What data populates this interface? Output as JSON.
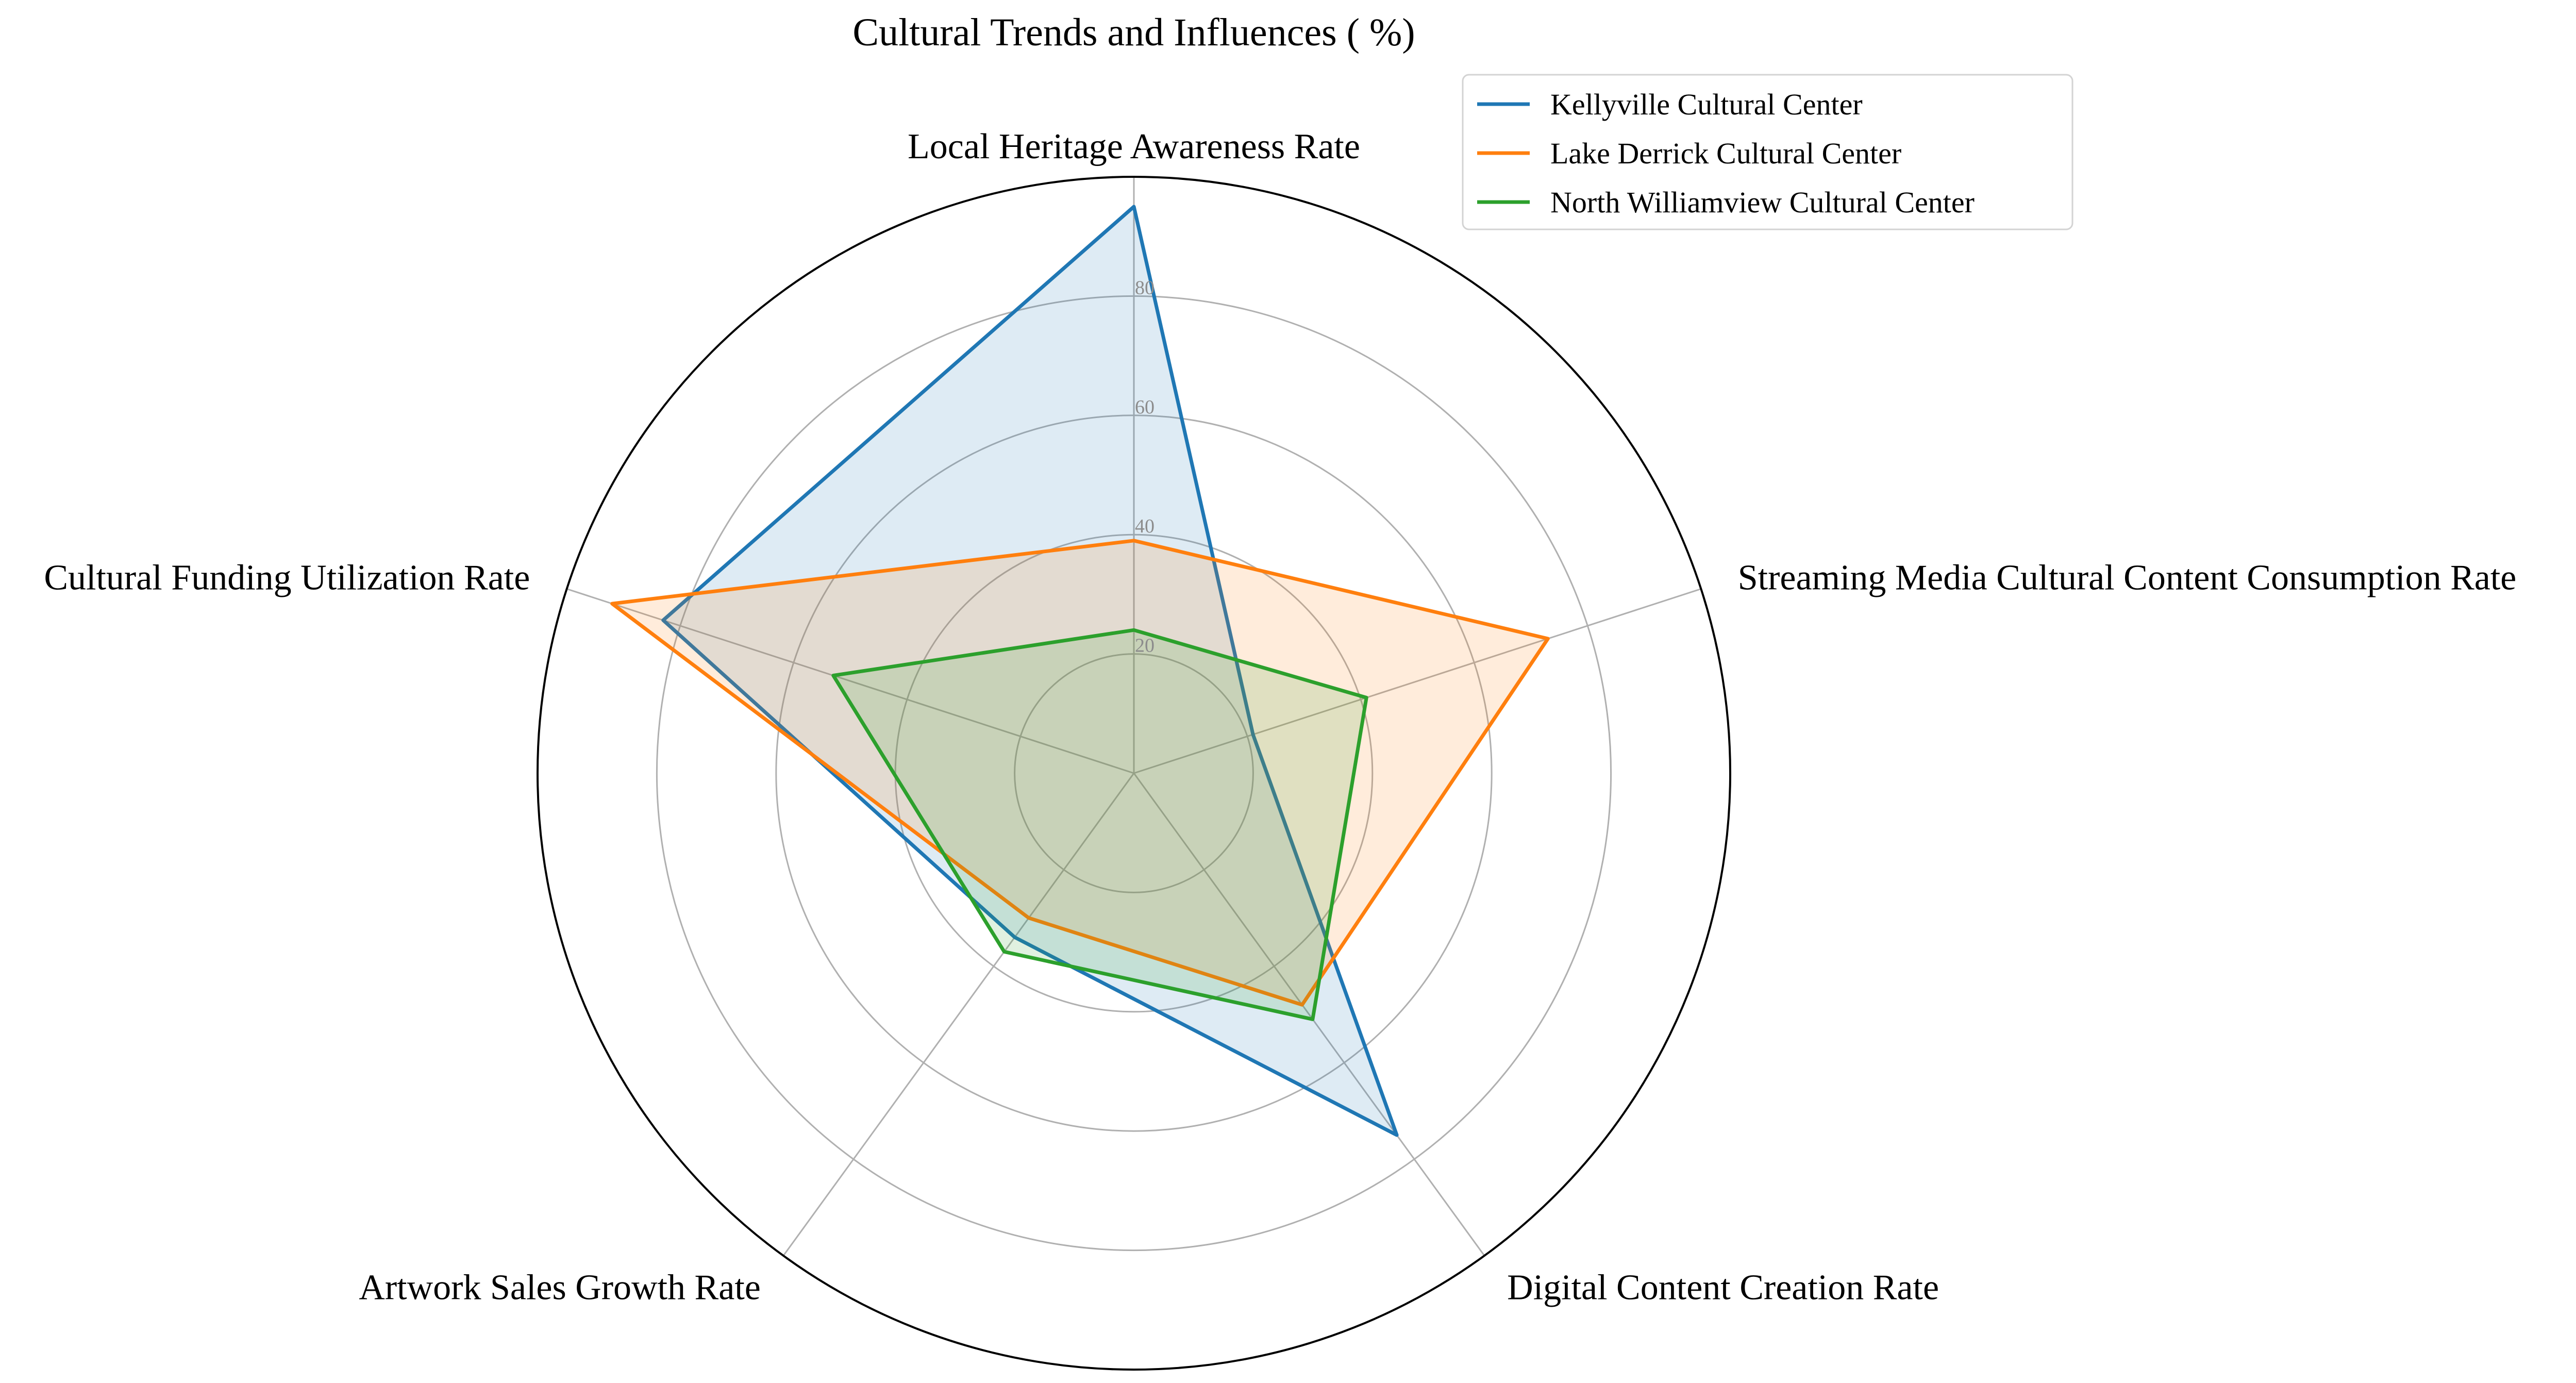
{
  "chart_data": {
    "type": "radar",
    "title": "Cultural Trends and Influences ( %)",
    "axes": [
      "Local Heritage Awareness Rate",
      "Streaming Media Cultural Content Consumption Rate",
      "Digital Content Creation Rate",
      "Artwork Sales Growth Rate",
      "Cultural Funding Utilization Rate"
    ],
    "rlim": [
      0,
      100
    ],
    "rticks": [
      20,
      40,
      60,
      80
    ],
    "grid": true,
    "legend_position": "top-right",
    "series": [
      {
        "name": "Kellyville Cultural Center",
        "color": "#1f77b4",
        "values": [
          95,
          21,
          75,
          34,
          83
        ]
      },
      {
        "name": "Lake Derrick Cultural Center",
        "color": "#ff7f0e",
        "values": [
          39,
          73,
          48,
          30,
          92
        ]
      },
      {
        "name": "North Williamview Cultural Center",
        "color": "#2ca02c",
        "values": [
          24,
          41,
          51,
          37,
          53
        ]
      }
    ]
  }
}
